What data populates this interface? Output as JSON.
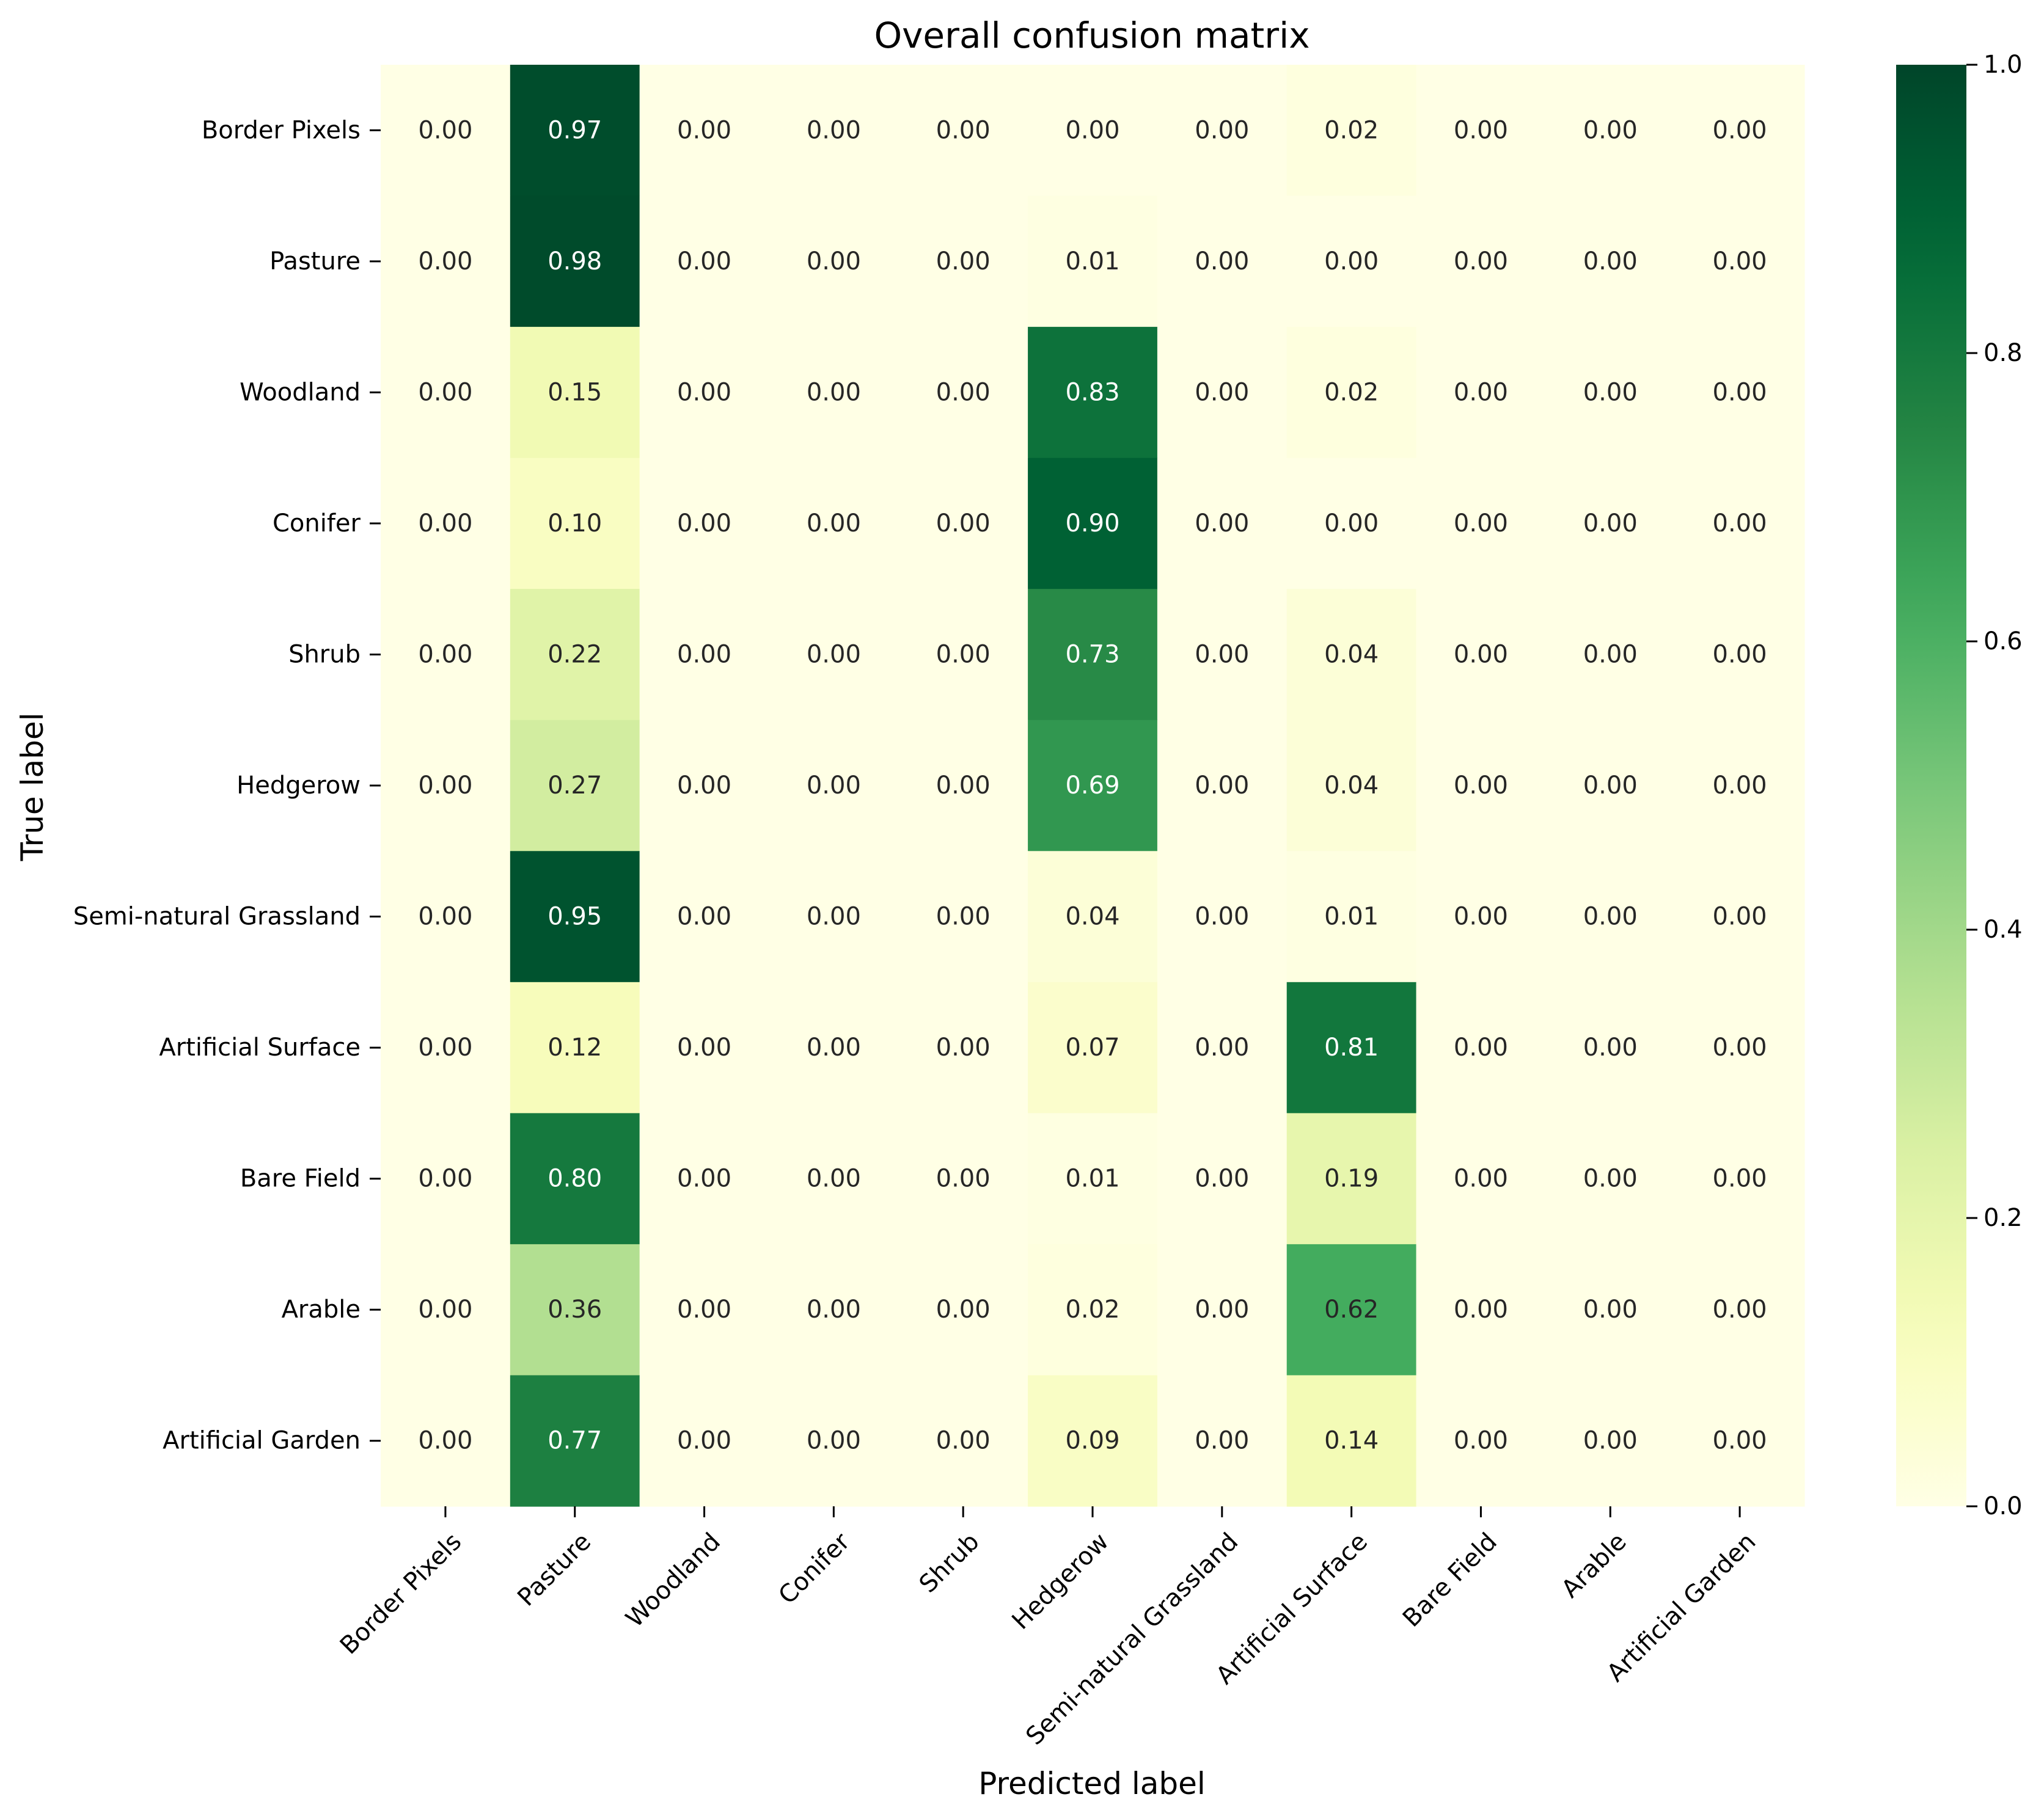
{
  "chart_data": {
    "type": "heatmap",
    "title": "Overall confusion matrix",
    "xlabel": "Predicted label",
    "ylabel": "True label",
    "x_categories": [
      "Border Pixels",
      "Pasture",
      "Woodland",
      "Conifer",
      "Shrub",
      "Hedgerow",
      "Semi-natural Grassland",
      "Artificial Surface",
      "Bare Field",
      "Arable",
      "Artificial Garden"
    ],
    "y_categories": [
      "Border Pixels",
      "Pasture",
      "Woodland",
      "Conifer",
      "Shrub",
      "Hedgerow",
      "Semi-natural Grassland",
      "Artificial Surface",
      "Bare Field",
      "Arable",
      "Artificial Garden"
    ],
    "values": [
      [
        0.0,
        0.97,
        0.0,
        0.0,
        0.0,
        0.0,
        0.0,
        0.02,
        0.0,
        0.0,
        0.0
      ],
      [
        0.0,
        0.98,
        0.0,
        0.0,
        0.0,
        0.01,
        0.0,
        0.0,
        0.0,
        0.0,
        0.0
      ],
      [
        0.0,
        0.15,
        0.0,
        0.0,
        0.0,
        0.83,
        0.0,
        0.02,
        0.0,
        0.0,
        0.0
      ],
      [
        0.0,
        0.1,
        0.0,
        0.0,
        0.0,
        0.9,
        0.0,
        0.0,
        0.0,
        0.0,
        0.0
      ],
      [
        0.0,
        0.22,
        0.0,
        0.0,
        0.0,
        0.73,
        0.0,
        0.04,
        0.0,
        0.0,
        0.0
      ],
      [
        0.0,
        0.27,
        0.0,
        0.0,
        0.0,
        0.69,
        0.0,
        0.04,
        0.0,
        0.0,
        0.0
      ],
      [
        0.0,
        0.95,
        0.0,
        0.0,
        0.0,
        0.04,
        0.0,
        0.01,
        0.0,
        0.0,
        0.0
      ],
      [
        0.0,
        0.12,
        0.0,
        0.0,
        0.0,
        0.07,
        0.0,
        0.81,
        0.0,
        0.0,
        0.0
      ],
      [
        0.0,
        0.8,
        0.0,
        0.0,
        0.0,
        0.01,
        0.0,
        0.19,
        0.0,
        0.0,
        0.0
      ],
      [
        0.0,
        0.36,
        0.0,
        0.0,
        0.0,
        0.02,
        0.0,
        0.62,
        0.0,
        0.0,
        0.0
      ],
      [
        0.0,
        0.77,
        0.0,
        0.0,
        0.0,
        0.09,
        0.0,
        0.14,
        0.0,
        0.0,
        0.0
      ]
    ],
    "value_format": "0.00",
    "colormap": "YlGn",
    "color_range": [
      0.0,
      1.0
    ],
    "colorbar_ticks": [
      "0.0",
      "0.2",
      "0.4",
      "0.6",
      "0.8",
      "1.0"
    ],
    "colorbar_tick_values": [
      0.0,
      0.2,
      0.4,
      0.6,
      0.8,
      1.0
    ],
    "colorbar_position": "right",
    "grid": false
  }
}
